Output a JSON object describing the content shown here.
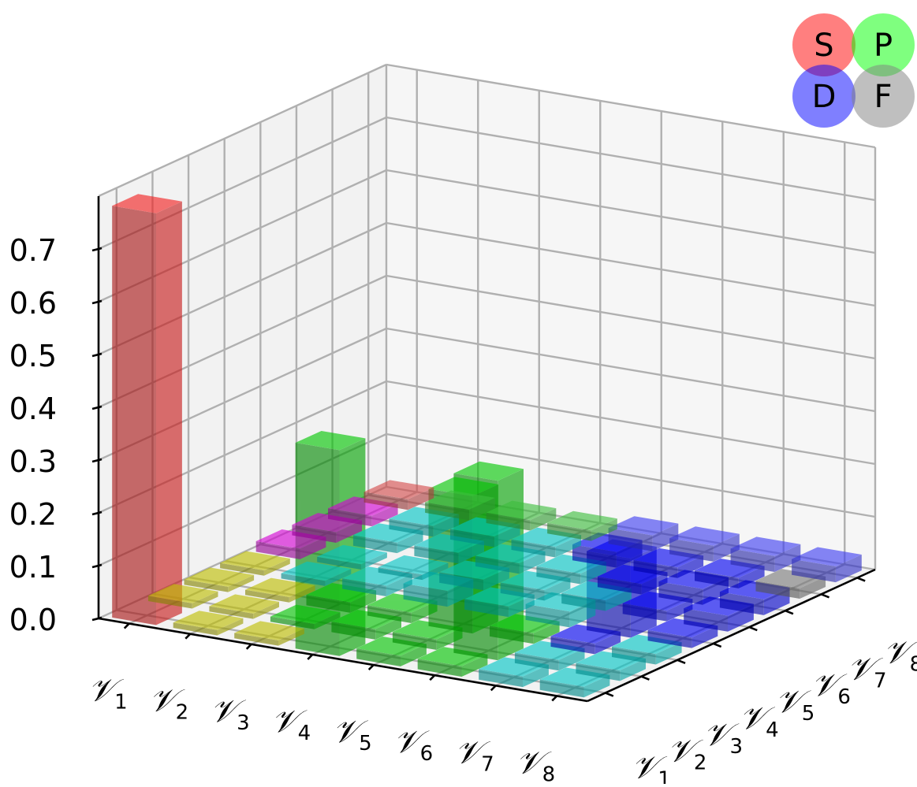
{
  "chart_data": {
    "type": "bar3d",
    "x_categories": [
      "𝒱",
      "𝒱",
      "𝒱",
      "𝒱",
      "𝒱",
      "𝒱",
      "𝒱",
      "𝒱"
    ],
    "x_tick_labels": [
      {
        "base": "𝒱",
        "sub": "1"
      },
      {
        "base": "𝒱",
        "sub": "2"
      },
      {
        "base": "𝒱",
        "sub": "3"
      },
      {
        "base": "𝒱",
        "sub": "4"
      },
      {
        "base": "𝒱",
        "sub": "5"
      },
      {
        "base": "𝒱",
        "sub": "6"
      },
      {
        "base": "𝒱",
        "sub": "7"
      },
      {
        "base": "𝒱",
        "sub": "8"
      }
    ],
    "y_tick_labels": [
      {
        "base": "𝒱",
        "sub": "1"
      },
      {
        "base": "𝒱",
        "sub": "2"
      },
      {
        "base": "𝒱",
        "sub": "3"
      },
      {
        "base": "𝒱",
        "sub": "4"
      },
      {
        "base": "𝒱",
        "sub": "5"
      },
      {
        "base": "𝒱",
        "sub": "6"
      },
      {
        "base": "𝒱",
        "sub": "7"
      },
      {
        "base": "𝒱",
        "sub": "8"
      }
    ],
    "z_ticks": [
      "0.0",
      "0.1",
      "0.2",
      "0.3",
      "0.4",
      "0.5",
      "0.6",
      "0.7"
    ],
    "zlim": [
      0,
      0.8
    ],
    "grid": true,
    "legend": {
      "position": "top-right",
      "items": [
        {
          "label": "S",
          "color": "#ff0000"
        },
        {
          "label": "P",
          "color": "#00ff00"
        },
        {
          "label": "D",
          "color": "#0000ff"
        },
        {
          "label": "F",
          "color": "#808080"
        }
      ]
    },
    "colors": {
      "S": "#ff2020",
      "P": "#00d000",
      "D": "#0000ff",
      "F": "#808080",
      "SP": "#c8c800",
      "SD": "#e000e0",
      "PD": "#00d0d0",
      "PF": "#40c840",
      "DF": "#4040ff",
      "SF": "#e05050"
    },
    "bars": [
      {
        "x": 1,
        "y": 1,
        "value": 0.02,
        "type": "SF"
      },
      {
        "x": 1,
        "y": 2,
        "value": 0.02,
        "type": "SD"
      },
      {
        "x": 1,
        "y": 3,
        "value": 0.02,
        "type": "SD"
      },
      {
        "x": 1,
        "y": 4,
        "value": 0.02,
        "type": "SD"
      },
      {
        "x": 1,
        "y": 5,
        "value": 0.01,
        "type": "SP"
      },
      {
        "x": 1,
        "y": 6,
        "value": 0.01,
        "type": "SP"
      },
      {
        "x": 1,
        "y": 7,
        "value": 0.01,
        "type": "SP"
      },
      {
        "x": 1,
        "y": 8,
        "value": 0.78,
        "type": "S"
      },
      {
        "x": 2,
        "y": 1,
        "value": 0.02,
        "type": "PF"
      },
      {
        "x": 2,
        "y": 2,
        "value": 0.02,
        "type": "PD"
      },
      {
        "x": 2,
        "y": 3,
        "value": 0.02,
        "type": "PD"
      },
      {
        "x": 2,
        "y": 4,
        "value": 0.01,
        "type": "PD"
      },
      {
        "x": 2,
        "y": 5,
        "value": 0.01,
        "type": "PD"
      },
      {
        "x": 2,
        "y": 6,
        "value": 0.01,
        "type": "SP"
      },
      {
        "x": 2,
        "y": 7,
        "value": 0.01,
        "type": "SP"
      },
      {
        "x": 2,
        "y": 8,
        "value": 0.01,
        "type": "SP"
      },
      {
        "x": 3,
        "y": 1,
        "value": 0.02,
        "type": "PF"
      },
      {
        "x": 3,
        "y": 2,
        "value": 0.02,
        "type": "PD"
      },
      {
        "x": 3,
        "y": 3,
        "value": 0.02,
        "type": "PD"
      },
      {
        "x": 3,
        "y": 4,
        "value": 0.01,
        "type": "PD"
      },
      {
        "x": 3,
        "y": 5,
        "value": 0.02,
        "type": "PD"
      },
      {
        "x": 3,
        "y": 6,
        "value": 0.02,
        "type": "P"
      },
      {
        "x": 3,
        "y": 7,
        "value": 0.01,
        "type": "P"
      },
      {
        "x": 3,
        "y": 8,
        "value": 0.01,
        "type": "SP"
      },
      {
        "x": 4,
        "y": 1,
        "value": 0.02,
        "type": "PF"
      },
      {
        "x": 4,
        "y": 2,
        "value": 0.02,
        "type": "PD"
      },
      {
        "x": 4,
        "y": 3,
        "value": 0.02,
        "type": "PD"
      },
      {
        "x": 4,
        "y": 4,
        "value": 0.02,
        "type": "PD"
      },
      {
        "x": 4,
        "y": 5,
        "value": 0.03,
        "type": "PD"
      },
      {
        "x": 4,
        "y": 6,
        "value": 0.02,
        "type": "P"
      },
      {
        "x": 4,
        "y": 7,
        "value": 0.02,
        "type": "P"
      },
      {
        "x": 4,
        "y": 8,
        "value": 0.39,
        "type": "P"
      },
      {
        "x": 5,
        "y": 1,
        "value": 0.03,
        "type": "DF"
      },
      {
        "x": 5,
        "y": 2,
        "value": 0.03,
        "type": "D"
      },
      {
        "x": 5,
        "y": 3,
        "value": 0.02,
        "type": "PD"
      },
      {
        "x": 5,
        "y": 4,
        "value": 0.02,
        "type": "PD"
      },
      {
        "x": 5,
        "y": 5,
        "value": 0.02,
        "type": "PD"
      },
      {
        "x": 5,
        "y": 6,
        "value": 0.26,
        "type": "P"
      },
      {
        "x": 5,
        "y": 7,
        "value": 0.02,
        "type": "P"
      },
      {
        "x": 5,
        "y": 8,
        "value": 0.02,
        "type": "P"
      },
      {
        "x": 6,
        "y": 1,
        "value": 0.03,
        "type": "DF"
      },
      {
        "x": 6,
        "y": 2,
        "value": 0.02,
        "type": "D"
      },
      {
        "x": 6,
        "y": 3,
        "value": 0.02,
        "type": "D"
      },
      {
        "x": 6,
        "y": 4,
        "value": 0.02,
        "type": "PD"
      },
      {
        "x": 6,
        "y": 5,
        "value": 0.03,
        "type": "PD"
      },
      {
        "x": 6,
        "y": 6,
        "value": 0.02,
        "type": "P"
      },
      {
        "x": 6,
        "y": 7,
        "value": 0.34,
        "type": "P"
      },
      {
        "x": 6,
        "y": 8,
        "value": 0.02,
        "type": "P"
      },
      {
        "x": 7,
        "y": 1,
        "value": 0.03,
        "type": "DF"
      },
      {
        "x": 7,
        "y": 2,
        "value": 0.02,
        "type": "D"
      },
      {
        "x": 7,
        "y": 3,
        "value": 0.03,
        "type": "D"
      },
      {
        "x": 7,
        "y": 4,
        "value": 0.02,
        "type": "D"
      },
      {
        "x": 7,
        "y": 5,
        "value": 0.15,
        "type": "D"
      },
      {
        "x": 7,
        "y": 6,
        "value": 0.02,
        "type": "D"
      },
      {
        "x": 7,
        "y": 7,
        "value": 0.02,
        "type": "PD"
      },
      {
        "x": 7,
        "y": 8,
        "value": 0.02,
        "type": "PD"
      },
      {
        "x": 8,
        "y": 1,
        "value": 0.03,
        "type": "DF"
      },
      {
        "x": 8,
        "y": 2,
        "value": 0.02,
        "type": "F"
      },
      {
        "x": 8,
        "y": 3,
        "value": 0.03,
        "type": "D"
      },
      {
        "x": 8,
        "y": 4,
        "value": 0.03,
        "type": "D"
      },
      {
        "x": 8,
        "y": 5,
        "value": 0.02,
        "type": "D"
      },
      {
        "x": 8,
        "y": 6,
        "value": 0.02,
        "type": "PD"
      },
      {
        "x": 8,
        "y": 7,
        "value": 0.02,
        "type": "PD"
      },
      {
        "x": 8,
        "y": 8,
        "value": 0.02,
        "type": "PD"
      }
    ]
  }
}
